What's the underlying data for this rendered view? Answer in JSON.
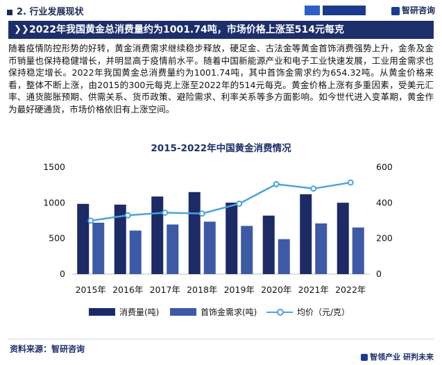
{
  "header": {
    "section_title": "2. 行业发展现状",
    "brand": "智研咨询"
  },
  "headline": "2022年我国黄金总消费量约为1001.74吨，市场价格上涨至514元每克",
  "paragraph": "随着疫情防控形势的好转，黄金消费需求继续稳步释放，硬足金、古法金等黄金首饰消费强势上升，金条及金币销量也保持稳健增长，并明显高于疫情前水平。随着中国新能源产业和电子工业快速发展，工业用金需求也保持稳定增长。2022年我国黄金总消费量约为1001.74吨，其中首饰金需求约为654.32吨。从黄金价格来看，整体不断上涨，由2015的300元每克上涨至2022年的514元每克。黄金价格上涨有多重因素，受美元汇率、通货膨胀预期、供需关系、货币政策、避险需求、利率关系等多方面影响。如今世代进入变革期，黄金作为最好硬通货，市场价格依旧有上涨空间。",
  "chart_data": {
    "type": "bar",
    "title": "2015-2022年中国黄金消费情况",
    "categories": [
      "2015年",
      "2016年",
      "2017年",
      "2018年",
      "2019年",
      "2020年",
      "2021年",
      "2022年"
    ],
    "y_left": {
      "ylim": [
        0,
        1500
      ],
      "ticks": [
        0,
        500,
        1000,
        1500
      ]
    },
    "y_right": {
      "ylim": [
        0,
        600
      ],
      "ticks": [
        0,
        200,
        400,
        600
      ]
    },
    "series": [
      {
        "name": "消费量(吨)",
        "type": "bar",
        "axis": "left",
        "color": "#1c2a66",
        "values": [
          985.9,
          975.38,
          1089.07,
          1151.43,
          1002.78,
          820.98,
          1120.9,
          1001.74
        ]
      },
      {
        "name": "首饰金需求(吨)",
        "type": "bar",
        "axis": "left",
        "color": "#3d5aa6",
        "values": [
          721.62,
          611.03,
          696.5,
          736.29,
          676.23,
          490.58,
          711.29,
          654.32
        ]
      },
      {
        "name": "均价（元/克）",
        "type": "line",
        "axis": "right",
        "color": "#4aa3d8",
        "values": [
          300,
          330,
          345,
          340,
          395,
          505,
          480,
          514
        ]
      }
    ],
    "legend_position": "bottom",
    "grid": false
  },
  "footer": {
    "source": "资料来源：智研咨询",
    "brand": "智领产业  研判未来"
  }
}
